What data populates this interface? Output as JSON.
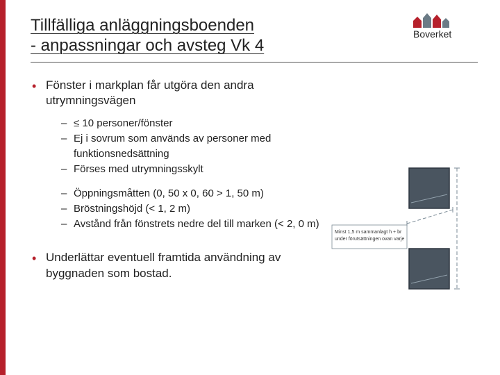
{
  "brand": {
    "name": "Boverket",
    "accent_color": "#b6202b",
    "logo_gray": "#6b7b86",
    "text_color": "#222222",
    "bg_color": "#ffffff"
  },
  "title": {
    "line1": "Tillfälliga anläggningsboenden",
    "line2": "- anpassningar och avsteg Vk 4",
    "fontsize": 24
  },
  "bullets": [
    {
      "text": "Fönster i markplan får utgöra den andra utrymningsvägen",
      "sub_groups": [
        {
          "wide": false,
          "items": [
            "≤ 10 personer/fönster",
            "Ej i sovrum som används av personer med funktionsnedsättning",
            "Förses med utrymningsskylt"
          ]
        },
        {
          "wide": true,
          "items": [
            "Öppningsmåtten (0, 50 x 0, 60 > 1, 50 m)",
            "Bröstningshöjd (< 1, 2 m)",
            "Avstånd från fönstrets nedre del till marken (< 2, 0 m)"
          ]
        }
      ]
    },
    {
      "text": "Underlättar eventuell framtida användning av byggnaden som bostad.",
      "sub_groups": []
    }
  ],
  "diagram": {
    "type": "diagram",
    "description": "window-egress-measurement",
    "label_line1": "Minst 1,5 m sammanlagt h + br",
    "label_line2": "under förutsättningen ovan varje",
    "label_fontsize": 7,
    "window_fill": "#4a5560",
    "window_stroke": "#2e3740",
    "dash_color": "#7a8a95",
    "dash_pattern": "5 3",
    "label_box_bg": "#ffffff",
    "label_box_border": "#7a8a95"
  }
}
